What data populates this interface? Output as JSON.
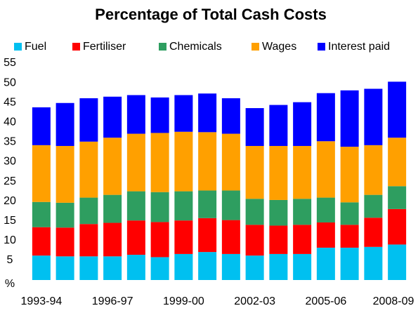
{
  "chart_data": {
    "type": "stacked_bar",
    "title": "Percentage of Total Cash Costs",
    "categories": [
      "1993-94",
      null,
      null,
      "1996-97",
      null,
      null,
      "1999-00",
      null,
      null,
      "2002-03",
      null,
      null,
      "2005-06",
      null,
      null,
      "2008-09"
    ],
    "series": [
      {
        "name": "Fuel",
        "color": "#00c0f0",
        "values": [
          6.2,
          6.0,
          6.0,
          6.0,
          6.4,
          5.8,
          6.6,
          7.1,
          6.6,
          6.2,
          6.6,
          6.6,
          8.2,
          8.2,
          8.4,
          9.0
        ]
      },
      {
        "name": "Fertiliser",
        "color": "#ff0000",
        "values": [
          7.2,
          7.3,
          8.2,
          8.5,
          8.7,
          8.9,
          8.5,
          8.6,
          8.6,
          7.8,
          7.2,
          7.4,
          6.4,
          5.8,
          7.4,
          9.0
        ]
      },
      {
        "name": "Chemicals",
        "color": "#2e9e60",
        "values": [
          6.4,
          6.3,
          6.7,
          7.1,
          7.4,
          7.6,
          7.4,
          7.0,
          7.5,
          6.6,
          6.5,
          6.6,
          6.3,
          5.7,
          5.8,
          5.8
        ]
      },
      {
        "name": "Wages",
        "color": "#ffa000",
        "values": [
          14.4,
          14.4,
          14.2,
          14.5,
          14.6,
          15.0,
          15.1,
          14.8,
          14.4,
          13.4,
          13.7,
          13.4,
          14.3,
          14.1,
          12.6,
          12.3
        ]
      },
      {
        "name": "Interest paid",
        "color": "#0000ff",
        "values": [
          9.6,
          10.9,
          11.0,
          10.4,
          9.8,
          9.0,
          9.3,
          9.8,
          9.0,
          9.6,
          10.4,
          11.1,
          12.2,
          14.3,
          14.3,
          14.2
        ]
      }
    ],
    "ylim": [
      0,
      55
    ],
    "yticks": [
      {
        "value": 0,
        "label": "%"
      },
      5,
      10,
      15,
      20,
      25,
      30,
      35,
      40,
      45,
      50,
      55
    ],
    "legend": "top"
  }
}
